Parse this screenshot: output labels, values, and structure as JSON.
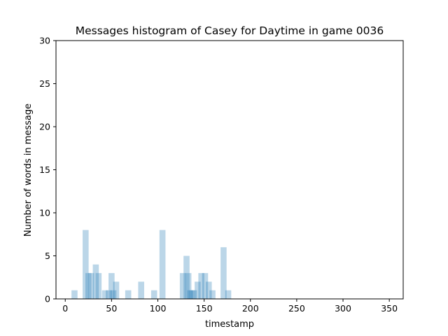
{
  "chart_data": {
    "type": "bar",
    "title": "Messages histogram of Casey for Daytime in game 0036",
    "xlabel": "timestamp",
    "ylabel": "Number of words in message",
    "xlim": [
      -10,
      365
    ],
    "ylim": [
      0,
      30
    ],
    "xticks": [
      "0",
      "50",
      "100",
      "150",
      "200",
      "250",
      "300",
      "350"
    ],
    "yticks": [
      "0",
      "5",
      "10",
      "15",
      "20",
      "25",
      "30"
    ],
    "bar_width": 6.5,
    "bar_color": "#1f77b4",
    "bar_opacity": 0.3,
    "grid": false,
    "series": [
      {
        "x": [
          10,
          22,
          25,
          28,
          33,
          36,
          43,
          47,
          50,
          52,
          55,
          68,
          82,
          96,
          105,
          127,
          131,
          133,
          135,
          137,
          139,
          143,
          147,
          151,
          155,
          159,
          171,
          176
        ],
        "values": [
          1,
          8,
          3,
          3,
          4,
          3,
          1,
          1,
          3,
          1,
          2,
          1,
          2,
          1,
          8,
          3,
          5,
          3,
          1,
          1,
          1,
          2,
          3,
          3,
          2,
          1,
          6,
          1
        ]
      }
    ]
  }
}
